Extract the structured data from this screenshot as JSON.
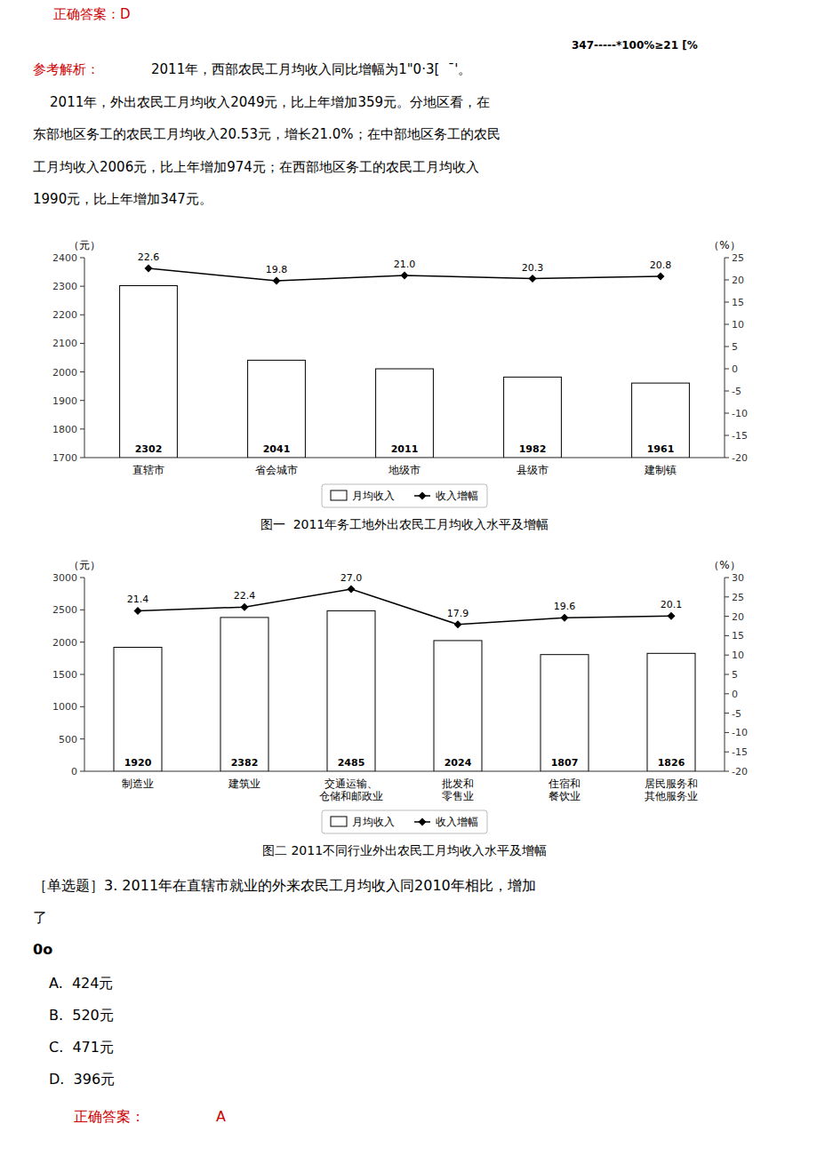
{
  "chart_data": [
    {
      "type": "bar",
      "title": "图一  2011年务工地外出农民工月均收入水平及增幅",
      "categories": [
        "直辖市",
        "省会城市",
        "地级市",
        "县级市",
        "建制镇"
      ],
      "series": [
        {
          "name": "月均收入",
          "type": "bar",
          "color": "#ffffff",
          "values": [
            2302,
            2041,
            2011,
            1982,
            1961
          ]
        },
        {
          "name": "收入增幅",
          "type": "line",
          "axis": "y2",
          "color": "#000000",
          "marker": "diamond",
          "values": [
            22.6,
            19.8,
            21.0,
            20.3,
            20.8
          ],
          "value_labels": [
            "22.6",
            "19.8",
            "21.0",
            "20.3",
            "20.8"
          ]
        }
      ],
      "ylim": [
        1700,
        2400
      ],
      "yticks": [
        1700,
        1800,
        1900,
        2000,
        2100,
        2200,
        2300,
        2400
      ],
      "y2lim": [
        -20,
        25
      ],
      "y2ticks": [
        -20,
        -15,
        -10,
        -5,
        0,
        5,
        10,
        15,
        20,
        25
      ],
      "ylabel": "（元）",
      "y2label": "（%）",
      "data_labels": true,
      "legend": "bottom",
      "grid": false,
      "annotations": [
        {
          "text": "正确答案：D",
          "color": "#cc0000"
        },
        {
          "text": "347-----*100%≥21 [%",
          "color": "#000000"
        },
        {
          "text": "参考解析：",
          "color": "#cc0000"
        },
        {
          "text": "2011年，西部农民工月均收入同比增幅为1\"0·3[  ˉ'。",
          "color": "#000000"
        },
        {
          "text": "    2011年，外出农民工月均收入2049元，比上年增加359元。分地区看，在",
          "color": "#000000"
        },
        {
          "text": "东部地区务工的农民工月均收入20.53元，增长21.0%；在中部地区务工的农民",
          "color": "#000000"
        },
        {
          "text": "工月均收入2006元，比上年增加974元；在西部地区务工的农民工月均收入",
          "color": "#000000"
        },
        {
          "text": "1990元，比上年增加347元。",
          "color": "#000000"
        }
      ]
    },
    {
      "type": "bar",
      "title": "图二 2011不同行业外出农民工月均收入水平及增幅",
      "categories": [
        "制造业",
        "建筑业",
        "交通运输、\n仓储和邮政业",
        "批发和\n零售业",
        "住宿和\n餐饮业",
        "居民服务和\n其他服务业"
      ],
      "series": [
        {
          "name": "月均收入",
          "type": "bar",
          "color": "#ffffff",
          "values": [
            1920,
            2382,
            2485,
            2024,
            1807,
            1826
          ]
        },
        {
          "name": "收入增幅",
          "type": "line",
          "axis": "y2",
          "color": "#000000",
          "marker": "diamond",
          "values": [
            21.4,
            22.4,
            27.0,
            17.9,
            19.6,
            20.1
          ],
          "value_labels": [
            "21.4",
            "22.4",
            "27.0",
            "17.9",
            "19.6",
            "20.1"
          ]
        }
      ],
      "ylim": [
        0,
        3000
      ],
      "yticks": [
        0,
        500,
        1000,
        1500,
        2000,
        2500,
        3000
      ],
      "y2lim": [
        -20,
        30
      ],
      "y2ticks": [
        -20,
        -15,
        -10,
        -5,
        0,
        5,
        10,
        15,
        20,
        25,
        30
      ],
      "ylabel": "（元）",
      "y2label": "（%）",
      "data_labels": true,
      "legend": "bottom",
      "grid": false,
      "annotations": [
        {
          "text": "［单选题］3. 2011年在直辖市就业的外来农民工月均收入同2010年相比，增加",
          "color": "#000000"
        },
        {
          "text": "了",
          "color": "#000000"
        },
        {
          "text": "0o",
          "color": "#000000"
        },
        {
          "text": "A.  424元",
          "color": "#000000"
        },
        {
          "text": "B.  520元",
          "color": "#000000"
        },
        {
          "text": "C.  471元",
          "color": "#000000"
        },
        {
          "text": "D.  396元",
          "color": "#000000"
        },
        {
          "text": "正确答案：",
          "color": "#cc0000"
        },
        {
          "text": "A",
          "color": "#cc0000"
        }
      ]
    }
  ]
}
